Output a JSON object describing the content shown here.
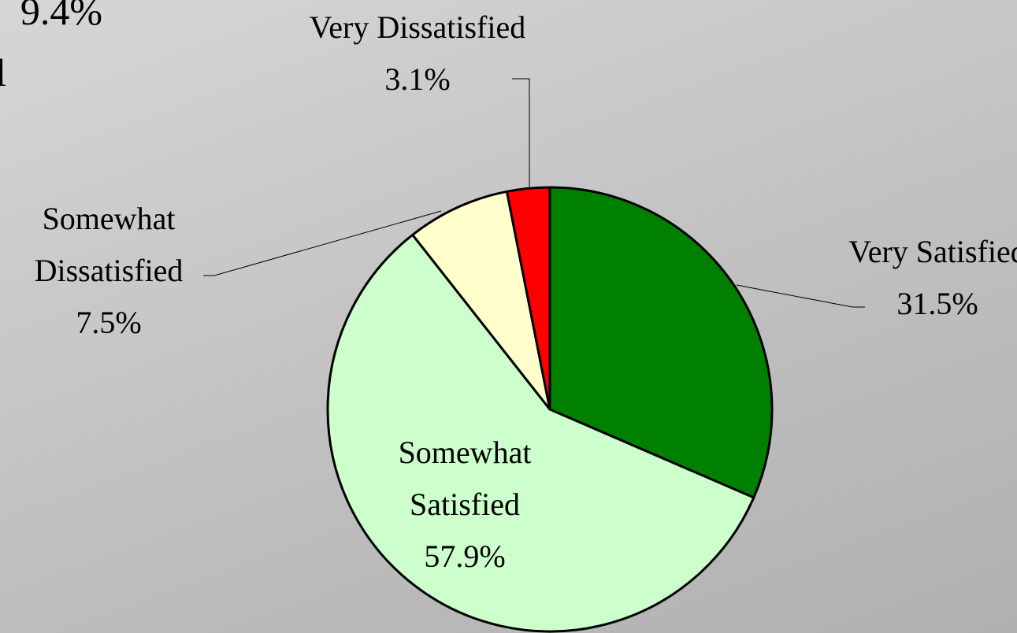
{
  "chart_data": {
    "type": "pie",
    "annotations": [
      "9.4%",
      "l"
    ],
    "categories": [
      "Very Satisfied",
      "Somewhat Satisfied",
      "Somewhat Dissatisfied",
      "Very Dissatisfied"
    ],
    "values": [
      31.5,
      57.9,
      7.5,
      3.1
    ],
    "value_labels": [
      "31.5%",
      "57.9%",
      "7.5%",
      "3.1%"
    ],
    "colors": [
      "#008000",
      "#ccffcc",
      "#ffffcc",
      "#ff0000"
    ]
  }
}
